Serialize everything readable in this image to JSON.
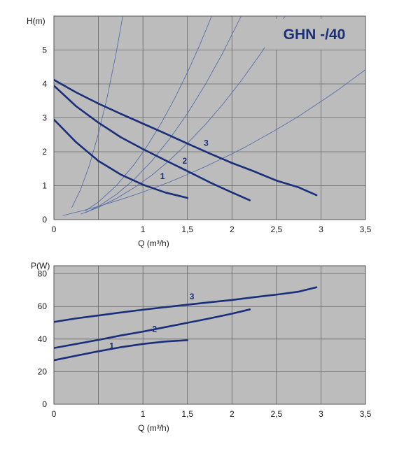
{
  "colors": {
    "plot_background": "#bcbcbc",
    "grid": "#666666",
    "curve": "#1a2f7a",
    "system_curve": "#5b6fa8",
    "title_box": "#bcbcbc"
  },
  "chart_data": [
    {
      "type": "line",
      "title": "GHN -/40",
      "ylabel": "H(m)",
      "xlabel": "Q (m³/h)",
      "xlim": [
        0,
        3.5
      ],
      "ylim": [
        0,
        6
      ],
      "x_ticks": [
        0,
        0.5,
        1,
        1.5,
        2,
        2.5,
        3,
        3.5
      ],
      "x_tick_labels": [
        "0",
        "",
        "1",
        "1,5",
        "2",
        "2,5",
        "3",
        "3,5"
      ],
      "y_ticks": [
        0,
        1,
        2,
        3,
        4,
        5
      ],
      "y_tick_labels": [
        "0",
        "1",
        "2",
        "3",
        "4",
        "5"
      ],
      "grid": true,
      "series": [
        {
          "name": "1",
          "x": [
            0,
            0.25,
            0.5,
            0.75,
            1.0,
            1.25,
            1.5
          ],
          "y": [
            2.95,
            2.28,
            1.73,
            1.33,
            1.03,
            0.8,
            0.64
          ]
        },
        {
          "name": "2",
          "x": [
            0,
            0.25,
            0.5,
            0.75,
            1.0,
            1.25,
            1.5,
            1.75,
            2.0,
            2.2
          ],
          "y": [
            3.95,
            3.34,
            2.86,
            2.43,
            2.08,
            1.75,
            1.43,
            1.1,
            0.8,
            0.57
          ]
        },
        {
          "name": "3",
          "x": [
            0,
            0.25,
            0.5,
            0.75,
            1.0,
            1.25,
            1.5,
            1.75,
            2.0,
            2.25,
            2.5,
            2.75,
            2.95
          ],
          "y": [
            4.12,
            3.75,
            3.42,
            3.12,
            2.83,
            2.54,
            2.24,
            1.95,
            1.67,
            1.42,
            1.15,
            0.95,
            0.72
          ]
        }
      ],
      "system_curves": [
        {
          "x": [
            0.1,
            0.3,
            0.5,
            0.7,
            0.9,
            1.1,
            1.3,
            1.5,
            1.7,
            1.85,
            2.0,
            2.15,
            2.3,
            2.45,
            2.6,
            2.75,
            2.9,
            3.05,
            3.2,
            3.35,
            3.5
          ],
          "y": [
            0.12,
            0.25,
            0.39,
            0.55,
            0.72,
            0.91,
            1.11,
            1.33,
            1.56,
            1.75,
            1.94,
            2.14,
            2.36,
            2.58,
            2.81,
            3.05,
            3.31,
            3.57,
            3.84,
            4.13,
            4.42
          ]
        },
        {
          "x": [
            0.3,
            0.5,
            0.7,
            0.9,
            1.1,
            1.3,
            1.5,
            1.7,
            1.9,
            2.1,
            2.3,
            2.5,
            2.7,
            2.9,
            3.05
          ],
          "y": [
            0.16,
            0.36,
            0.62,
            0.94,
            1.31,
            1.75,
            2.25,
            2.8,
            3.41,
            4.08,
            4.81,
            5.59,
            6.44,
            7.35,
            8.08
          ]
        },
        {
          "x": [
            0.35,
            0.5,
            0.7,
            0.9,
            1.1,
            1.3,
            1.5,
            1.7,
            1.9,
            2.1,
            2.3
          ],
          "y": [
            0.2,
            0.39,
            0.74,
            1.18,
            1.73,
            2.38,
            3.13,
            3.98,
            4.93,
            5.98,
            7.13
          ]
        },
        {
          "x": [
            0.35,
            0.5,
            0.7,
            0.9,
            1.05,
            1.2,
            1.35,
            1.5,
            1.65,
            1.8,
            1.95
          ],
          "y": [
            0.25,
            0.52,
            1.0,
            1.62,
            2.18,
            2.82,
            3.54,
            4.34,
            5.22,
            6.18,
            7.22
          ]
        },
        {
          "x": [
            0.2,
            0.3,
            0.4,
            0.5,
            0.6,
            0.7,
            0.8,
            0.9,
            1.0
          ],
          "y": [
            0.35,
            0.89,
            1.61,
            2.53,
            3.63,
            4.92,
            6.4,
            8.07,
            9.94
          ]
        }
      ]
    },
    {
      "type": "line",
      "title": "",
      "ylabel": "P(W)",
      "xlabel": "Q (m³/h)",
      "xlim": [
        0,
        3.5
      ],
      "ylim": [
        0,
        85
      ],
      "x_ticks": [
        0,
        0.5,
        1,
        1.5,
        2,
        2.5,
        3,
        3.5
      ],
      "x_tick_labels": [
        "0",
        "",
        "1",
        "1,5",
        "2",
        "2,5",
        "3",
        "3,5"
      ],
      "y_ticks": [
        0,
        20,
        40,
        60,
        80
      ],
      "y_tick_labels": [
        "0",
        "20",
        "40",
        "60",
        "80"
      ],
      "grid": true,
      "series": [
        {
          "name": "1",
          "x": [
            0,
            0.25,
            0.5,
            0.75,
            1.0,
            1.25,
            1.5
          ],
          "y": [
            27,
            29.8,
            32.5,
            35,
            37,
            38.5,
            39.3
          ]
        },
        {
          "name": "2",
          "x": [
            0,
            0.25,
            0.5,
            0.75,
            1.0,
            1.25,
            1.5,
            1.75,
            2.0,
            2.2
          ],
          "y": [
            34.5,
            37,
            39.5,
            42.2,
            44.6,
            47.3,
            50,
            52.7,
            55.6,
            58.2
          ]
        },
        {
          "name": "3",
          "x": [
            0,
            0.25,
            0.5,
            0.75,
            1.0,
            1.25,
            1.5,
            1.75,
            2.0,
            2.25,
            2.5,
            2.75,
            2.95
          ],
          "y": [
            50.5,
            52.7,
            54.5,
            56.3,
            58,
            59.6,
            61.1,
            62.6,
            64,
            65.7,
            67.3,
            69.1,
            71.8
          ]
        }
      ]
    }
  ]
}
